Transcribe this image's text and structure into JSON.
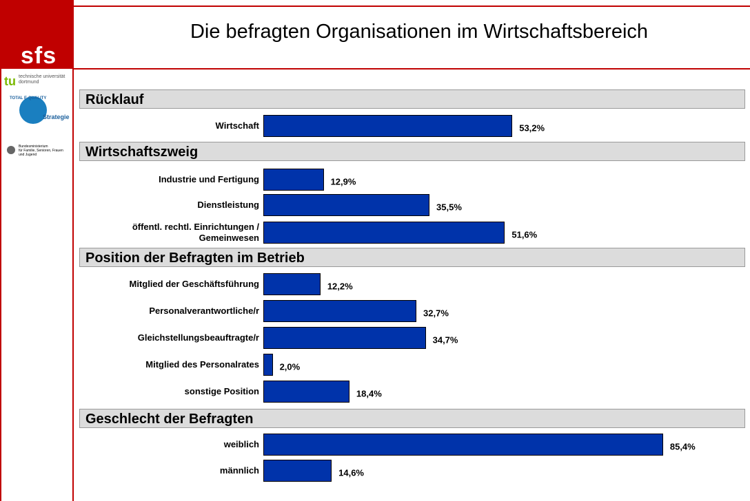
{
  "header": {
    "title": "Die befragten Organisationen im Wirtschaftsbereich"
  },
  "sidebar": {
    "logo": "sfs",
    "university": "technische universität\ndortmund",
    "seal": "TOTAL E-QUALITY",
    "seal_sub": "Strategie",
    "ministry": "Bundesministerium\nfür Familie, Senioren, Frauen\nund Jugend"
  },
  "chart_data": [
    {
      "type": "bar",
      "orientation": "horizontal",
      "title": "Rücklauf",
      "color": "#0033aa",
      "categories": [
        "Wirtschaft"
      ],
      "values": [
        53.2
      ],
      "value_labels": [
        "53,2%"
      ]
    },
    {
      "type": "bar",
      "orientation": "horizontal",
      "title": "Wirtschaftszweig",
      "color": "#0033aa",
      "categories": [
        "Industrie und Fertigung",
        "Dienstleistung",
        "öffentl. rechtl. Einrichtungen /\nGemeinwesen"
      ],
      "values": [
        12.9,
        35.5,
        51.6
      ],
      "value_labels": [
        "12,9%",
        "35,5%",
        "51,6%"
      ]
    },
    {
      "type": "bar",
      "orientation": "horizontal",
      "title": "Position der Befragten im Betrieb",
      "color": "#0033aa",
      "categories": [
        "Mitglied der Geschäftsführung",
        "Personalverantwortliche/r",
        "Gleichstellungsbeauftragte/r",
        "Mitglied des Personalrates",
        "sonstige Position"
      ],
      "values": [
        12.2,
        32.7,
        34.7,
        2.0,
        18.4
      ],
      "value_labels": [
        "12,2%",
        "32,7%",
        "34,7%",
        "2,0%",
        "18,4%"
      ]
    },
    {
      "type": "bar",
      "orientation": "horizontal",
      "title": "Geschlecht der Befragten",
      "color": "#0033aa",
      "categories": [
        "weiblich",
        "männlich"
      ],
      "values": [
        85.4,
        14.6
      ],
      "value_labels": [
        "85,4%",
        "14,6%"
      ]
    }
  ]
}
